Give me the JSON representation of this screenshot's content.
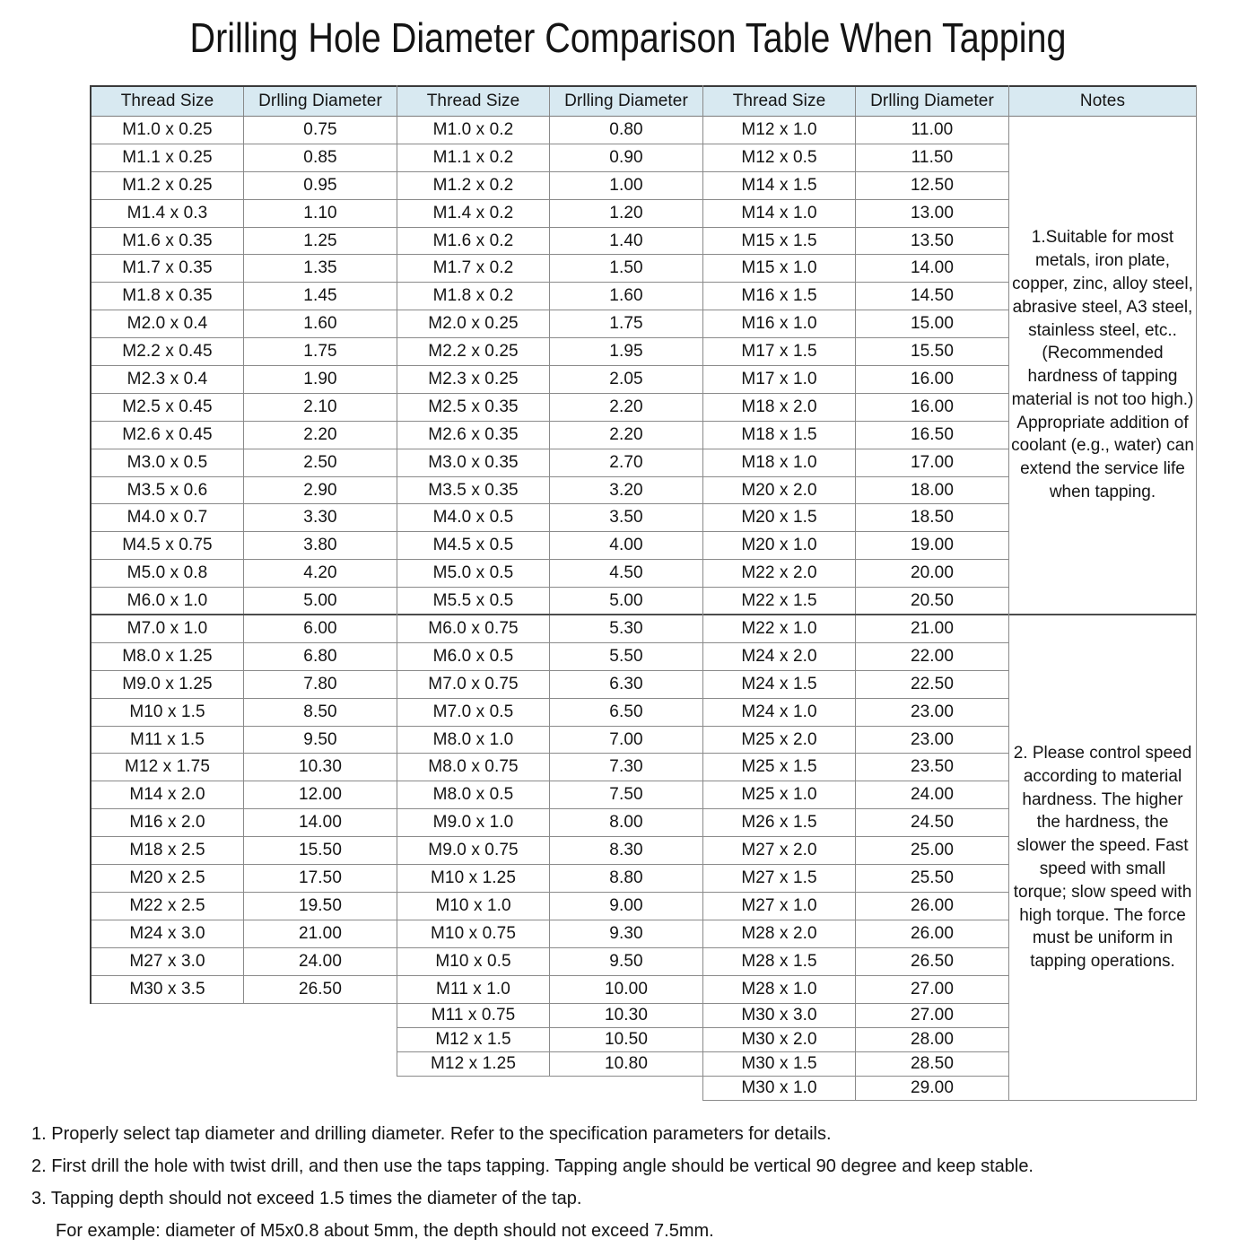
{
  "title": "Drilling Hole Diameter Comparison Table When Tapping",
  "colors": {
    "header_bg": "#d8e9f1",
    "grid_line": "#8a8a8a",
    "outer_line": "#3a3a3a",
    "text": "#141414"
  },
  "table": {
    "headers": [
      "Thread Size",
      "Drlling Diameter",
      "Thread Size",
      "Drlling Diameter",
      "Thread Size",
      "Drlling Diameter",
      "Notes"
    ],
    "group1": [
      [
        "M1.0 x 0.25",
        "0.75"
      ],
      [
        "M1.1 x 0.25",
        "0.85"
      ],
      [
        "M1.2 x 0.25",
        "0.95"
      ],
      [
        "M1.4 x 0.3",
        "1.10"
      ],
      [
        "M1.6 x 0.35",
        "1.25"
      ],
      [
        "M1.7 x 0.35",
        "1.35"
      ],
      [
        "M1.8 x 0.35",
        "1.45"
      ],
      [
        "M2.0 x 0.4",
        "1.60"
      ],
      [
        "M2.2 x 0.45",
        "1.75"
      ],
      [
        "M2.3 x 0.4",
        "1.90"
      ],
      [
        "M2.5 x 0.45",
        "2.10"
      ],
      [
        "M2.6 x 0.45",
        "2.20"
      ],
      [
        "M3.0 x 0.5",
        "2.50"
      ],
      [
        "M3.5 x 0.6",
        "2.90"
      ],
      [
        "M4.0 x 0.7",
        "3.30"
      ],
      [
        "M4.5 x 0.75",
        "3.80"
      ],
      [
        "M5.0 x 0.8",
        "4.20"
      ],
      [
        "M6.0 x 1.0",
        "5.00"
      ],
      [
        "M7.0 x 1.0",
        "6.00"
      ],
      [
        "M8.0 x 1.25",
        "6.80"
      ],
      [
        "M9.0 x 1.25",
        "7.80"
      ],
      [
        "M10 x 1.5",
        "8.50"
      ],
      [
        "M11 x 1.5",
        "9.50"
      ],
      [
        "M12 x 1.75",
        "10.30"
      ],
      [
        "M14 x 2.0",
        "12.00"
      ],
      [
        "M16 x 2.0",
        "14.00"
      ],
      [
        "M18 x 2.5",
        "15.50"
      ],
      [
        "M20 x 2.5",
        "17.50"
      ],
      [
        "M22 x 2.5",
        "19.50"
      ],
      [
        "M24 x 3.0",
        "21.00"
      ],
      [
        "M27 x 3.0",
        "24.00"
      ],
      [
        "M30 x 3.5",
        "26.50"
      ]
    ],
    "group2": [
      [
        "M1.0 x 0.2",
        "0.80"
      ],
      [
        "M1.1 x 0.2",
        "0.90"
      ],
      [
        "M1.2 x 0.2",
        "1.00"
      ],
      [
        "M1.4 x 0.2",
        "1.20"
      ],
      [
        "M1.6 x 0.2",
        "1.40"
      ],
      [
        "M1.7 x 0.2",
        "1.50"
      ],
      [
        "M1.8 x 0.2",
        "1.60"
      ],
      [
        "M2.0 x 0.25",
        "1.75"
      ],
      [
        "M2.2 x 0.25",
        "1.95"
      ],
      [
        "M2.3 x 0.25",
        "2.05"
      ],
      [
        "M2.5 x 0.35",
        "2.20"
      ],
      [
        "M2.6 x 0.35",
        "2.20"
      ],
      [
        "M3.0 x 0.35",
        "2.70"
      ],
      [
        "M3.5 x 0.35",
        "3.20"
      ],
      [
        "M4.0 x 0.5",
        "3.50"
      ],
      [
        "M4.5 x 0.5",
        "4.00"
      ],
      [
        "M5.0 x 0.5",
        "4.50"
      ],
      [
        "M5.5 x 0.5",
        "5.00"
      ],
      [
        "M6.0 x 0.75",
        "5.30"
      ],
      [
        "M6.0 x 0.5",
        "5.50"
      ],
      [
        "M7.0 x 0.75",
        "6.30"
      ],
      [
        "M7.0 x 0.5",
        "6.50"
      ],
      [
        "M8.0 x 1.0",
        "7.00"
      ],
      [
        "M8.0 x 0.75",
        "7.30"
      ],
      [
        "M8.0 x 0.5",
        "7.50"
      ],
      [
        "M9.0 x 1.0",
        "8.00"
      ],
      [
        "M9.0 x 0.75",
        "8.30"
      ],
      [
        "M10 x 1.25",
        "8.80"
      ],
      [
        "M10 x 1.0",
        "9.00"
      ],
      [
        "M10 x 0.75",
        "9.30"
      ],
      [
        "M10 x 0.5",
        "9.50"
      ],
      [
        "M11 x 1.0",
        "10.00"
      ],
      [
        "M11 x 0.75",
        "10.30"
      ],
      [
        "M12 x 1.5",
        "10.50"
      ],
      [
        "M12 x 1.25",
        "10.80"
      ]
    ],
    "group3": [
      [
        "M12 x 1.0",
        "11.00"
      ],
      [
        "M12 x 0.5",
        "11.50"
      ],
      [
        "M14 x 1.5",
        "12.50"
      ],
      [
        "M14 x 1.0",
        "13.00"
      ],
      [
        "M15 x 1.5",
        "13.50"
      ],
      [
        "M15 x 1.0",
        "14.00"
      ],
      [
        "M16 x 1.5",
        "14.50"
      ],
      [
        "M16 x 1.0",
        "15.00"
      ],
      [
        "M17 x 1.5",
        "15.50"
      ],
      [
        "M17 x 1.0",
        "16.00"
      ],
      [
        "M18 x 2.0",
        "16.00"
      ],
      [
        "M18 x 1.5",
        "16.50"
      ],
      [
        "M18 x 1.0",
        "17.00"
      ],
      [
        "M20 x 2.0",
        "18.00"
      ],
      [
        "M20 x 1.5",
        "18.50"
      ],
      [
        "M20 x 1.0",
        "19.00"
      ],
      [
        "M22 x 2.0",
        "20.00"
      ],
      [
        "M22 x 1.5",
        "20.50"
      ],
      [
        "M22 x 1.0",
        "21.00"
      ],
      [
        "M24 x 2.0",
        "22.00"
      ],
      [
        "M24 x 1.5",
        "22.50"
      ],
      [
        "M24 x 1.0",
        "23.00"
      ],
      [
        "M25 x 2.0",
        "23.00"
      ],
      [
        "M25 x 1.5",
        "23.50"
      ],
      [
        "M25 x 1.0",
        "24.00"
      ],
      [
        "M26 x 1.5",
        "24.50"
      ],
      [
        "M27 x 2.0",
        "25.00"
      ],
      [
        "M27 x 1.5",
        "25.50"
      ],
      [
        "M27 x 1.0",
        "26.00"
      ],
      [
        "M28 x 2.0",
        "26.00"
      ],
      [
        "M28 x 1.5",
        "26.50"
      ],
      [
        "M28 x 1.0",
        "27.00"
      ],
      [
        "M30 x 3.0",
        "27.00"
      ],
      [
        "M30 x 2.0",
        "28.00"
      ],
      [
        "M30 x 1.5",
        "28.50"
      ],
      [
        "M30 x 1.0",
        "29.00"
      ]
    ],
    "notes": [
      "1.Suitable for most metals, iron plate, copper, zinc, alloy steel, abrasive steel, A3 steel, stainless steel, etc..(Recommended hardness of tapping material is not too high.) Appropriate addition of coolant (e.g., water) can extend the service life when tapping.",
      "2. Please control speed according to material hardness. The higher the hardness, the slower the speed. Fast speed with small torque; slow speed with high torque. The force must be uniform in tapping operations."
    ]
  },
  "footer": {
    "lines": [
      "1. Properly select tap diameter and drilling diameter. Refer to the specification parameters for details.",
      "2. First drill the hole with twist drill, and then use the taps tapping. Tapping angle should be vertical 90 degree and keep stable.",
      "3. Tapping depth should not exceed 1.5 times the diameter of the tap.",
      "For example: diameter of M5x0.8 about 5mm, the depth should not exceed 7.5mm."
    ]
  }
}
